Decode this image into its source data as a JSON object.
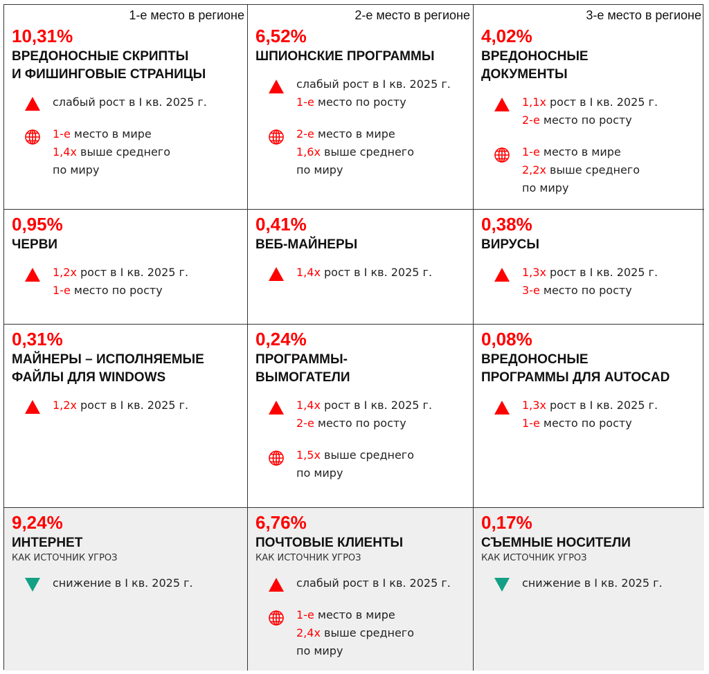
{
  "colors": {
    "accent": "#ff0000",
    "down": "#13a085",
    "text": "#222222",
    "footer_bg": "#efefef"
  },
  "cells": [
    {
      "rank": "1-е место в регионе",
      "percent": "10,31%",
      "title": [
        "ВРЕДОНОСНЫЕ СКРИПТЫ",
        "И ФИШИНГОВЫЕ СТРАНИЦЫ"
      ],
      "stats": [
        {
          "icon": "triangle-up",
          "lines": [
            {
              "hl": "",
              "text": "слабый рост в I кв. 2025 г."
            }
          ]
        },
        {
          "icon": "globe",
          "lines": [
            {
              "hl": "1-е",
              "text": " место в мире"
            },
            {
              "hl": "1,4x",
              "text": " выше среднего"
            },
            {
              "hl": "",
              "text": "по миру"
            }
          ]
        }
      ]
    },
    {
      "rank": "2-е место в регионе",
      "percent": "6,52%",
      "title": [
        "ШПИОНСКИЕ ПРОГРАММЫ"
      ],
      "stats": [
        {
          "icon": "triangle-up",
          "lines": [
            {
              "hl": "",
              "text": "слабый рост в I кв. 2025 г."
            },
            {
              "hl": "1-е",
              "text": " место по росту"
            }
          ]
        },
        {
          "icon": "globe",
          "lines": [
            {
              "hl": "2-е",
              "text": " место в мире"
            },
            {
              "hl": "1,6x",
              "text": " выше среднего"
            },
            {
              "hl": "",
              "text": "по миру"
            }
          ]
        }
      ]
    },
    {
      "rank": "3-е место в регионе",
      "percent": "4,02%",
      "title": [
        "ВРЕДОНОСНЫЕ",
        "ДОКУМЕНТЫ"
      ],
      "stats": [
        {
          "icon": "triangle-up",
          "lines": [
            {
              "hl": "1,1x",
              "text": " рост в I кв. 2025 г."
            },
            {
              "hl": "2-е",
              "text": " место по росту"
            }
          ]
        },
        {
          "icon": "globe",
          "lines": [
            {
              "hl": "1-е",
              "text": " место в мире"
            },
            {
              "hl": "2,2x",
              "text": " выше среднего"
            },
            {
              "hl": "",
              "text": "по миру"
            }
          ]
        }
      ]
    },
    {
      "percent": "0,95%",
      "title": [
        "ЧЕРВИ"
      ],
      "stats": [
        {
          "icon": "triangle-up",
          "lines": [
            {
              "hl": "1,2x",
              "text": " рост в I кв. 2025 г."
            },
            {
              "hl": "1-е",
              "text": " место по росту"
            }
          ]
        }
      ]
    },
    {
      "percent": "0,41%",
      "title": [
        "ВЕБ-МАЙНЕРЫ"
      ],
      "stats": [
        {
          "icon": "triangle-up",
          "lines": [
            {
              "hl": "1,4x",
              "text": " рост в I кв. 2025 г."
            }
          ]
        }
      ]
    },
    {
      "percent": "0,38%",
      "title": [
        "ВИРУСЫ"
      ],
      "stats": [
        {
          "icon": "triangle-up",
          "lines": [
            {
              "hl": "1,3x",
              "text": " рост в I кв. 2025 г."
            },
            {
              "hl": "3-е",
              "text": " место по росту"
            }
          ]
        }
      ]
    },
    {
      "percent": "0,31%",
      "title": [
        "МАЙНЕРЫ – ИСПОЛНЯЕМЫЕ",
        "ФАЙЛЫ ДЛЯ WINDOWS"
      ],
      "stats": [
        {
          "icon": "triangle-up",
          "lines": [
            {
              "hl": "1,2x",
              "text": " рост в I кв. 2025 г."
            }
          ]
        }
      ]
    },
    {
      "percent": "0,24%",
      "title": [
        "ПРОГРАММЫ-",
        "ВЫМОГАТЕЛИ"
      ],
      "stats": [
        {
          "icon": "triangle-up",
          "lines": [
            {
              "hl": "1,4x",
              "text": " рост в I кв. 2025 г."
            },
            {
              "hl": "2-е",
              "text": " место по росту"
            }
          ]
        },
        {
          "icon": "globe",
          "lines": [
            {
              "hl": "1,5x",
              "text": " выше среднего"
            },
            {
              "hl": "",
              "text": "по миру"
            }
          ]
        }
      ]
    },
    {
      "percent": "0,08%",
      "title": [
        "ВРЕДОНОСНЫЕ",
        "ПРОГРАММЫ ДЛЯ AUTOCAD"
      ],
      "stats": [
        {
          "icon": "triangle-up",
          "lines": [
            {
              "hl": "1,3x",
              "text": " рост в I кв. 2025 г."
            },
            {
              "hl": "1-е",
              "text": " место по росту"
            }
          ]
        }
      ]
    },
    {
      "percent": "9,24%",
      "title": [
        "ИНТЕРНЕТ"
      ],
      "subtitle": "КАК ИСТОЧНИК УГРОЗ",
      "stats": [
        {
          "icon": "triangle-down",
          "lines": [
            {
              "hl": "",
              "text": "снижение в I кв. 2025 г."
            }
          ]
        }
      ]
    },
    {
      "percent": "6,76%",
      "title": [
        "ПОЧТОВЫЕ КЛИЕНТЫ"
      ],
      "subtitle": "КАК ИСТОЧНИК УГРОЗ",
      "stats": [
        {
          "icon": "triangle-up",
          "lines": [
            {
              "hl": "",
              "text": "слабый рост в I кв. 2025 г."
            }
          ]
        },
        {
          "icon": "globe",
          "lines": [
            {
              "hl": "1-е",
              "text": " место в мире"
            },
            {
              "hl": "2,4x",
              "text": " выше среднего"
            },
            {
              "hl": "",
              "text": "по миру"
            }
          ]
        }
      ]
    },
    {
      "percent": "0,17%",
      "title": [
        "СЪЕМНЫЕ НОСИТЕЛИ"
      ],
      "subtitle": "КАК ИСТОЧНИК УГРОЗ",
      "stats": [
        {
          "icon": "triangle-down",
          "lines": [
            {
              "hl": "",
              "text": "снижение в I кв. 2025 г."
            }
          ]
        }
      ]
    }
  ]
}
